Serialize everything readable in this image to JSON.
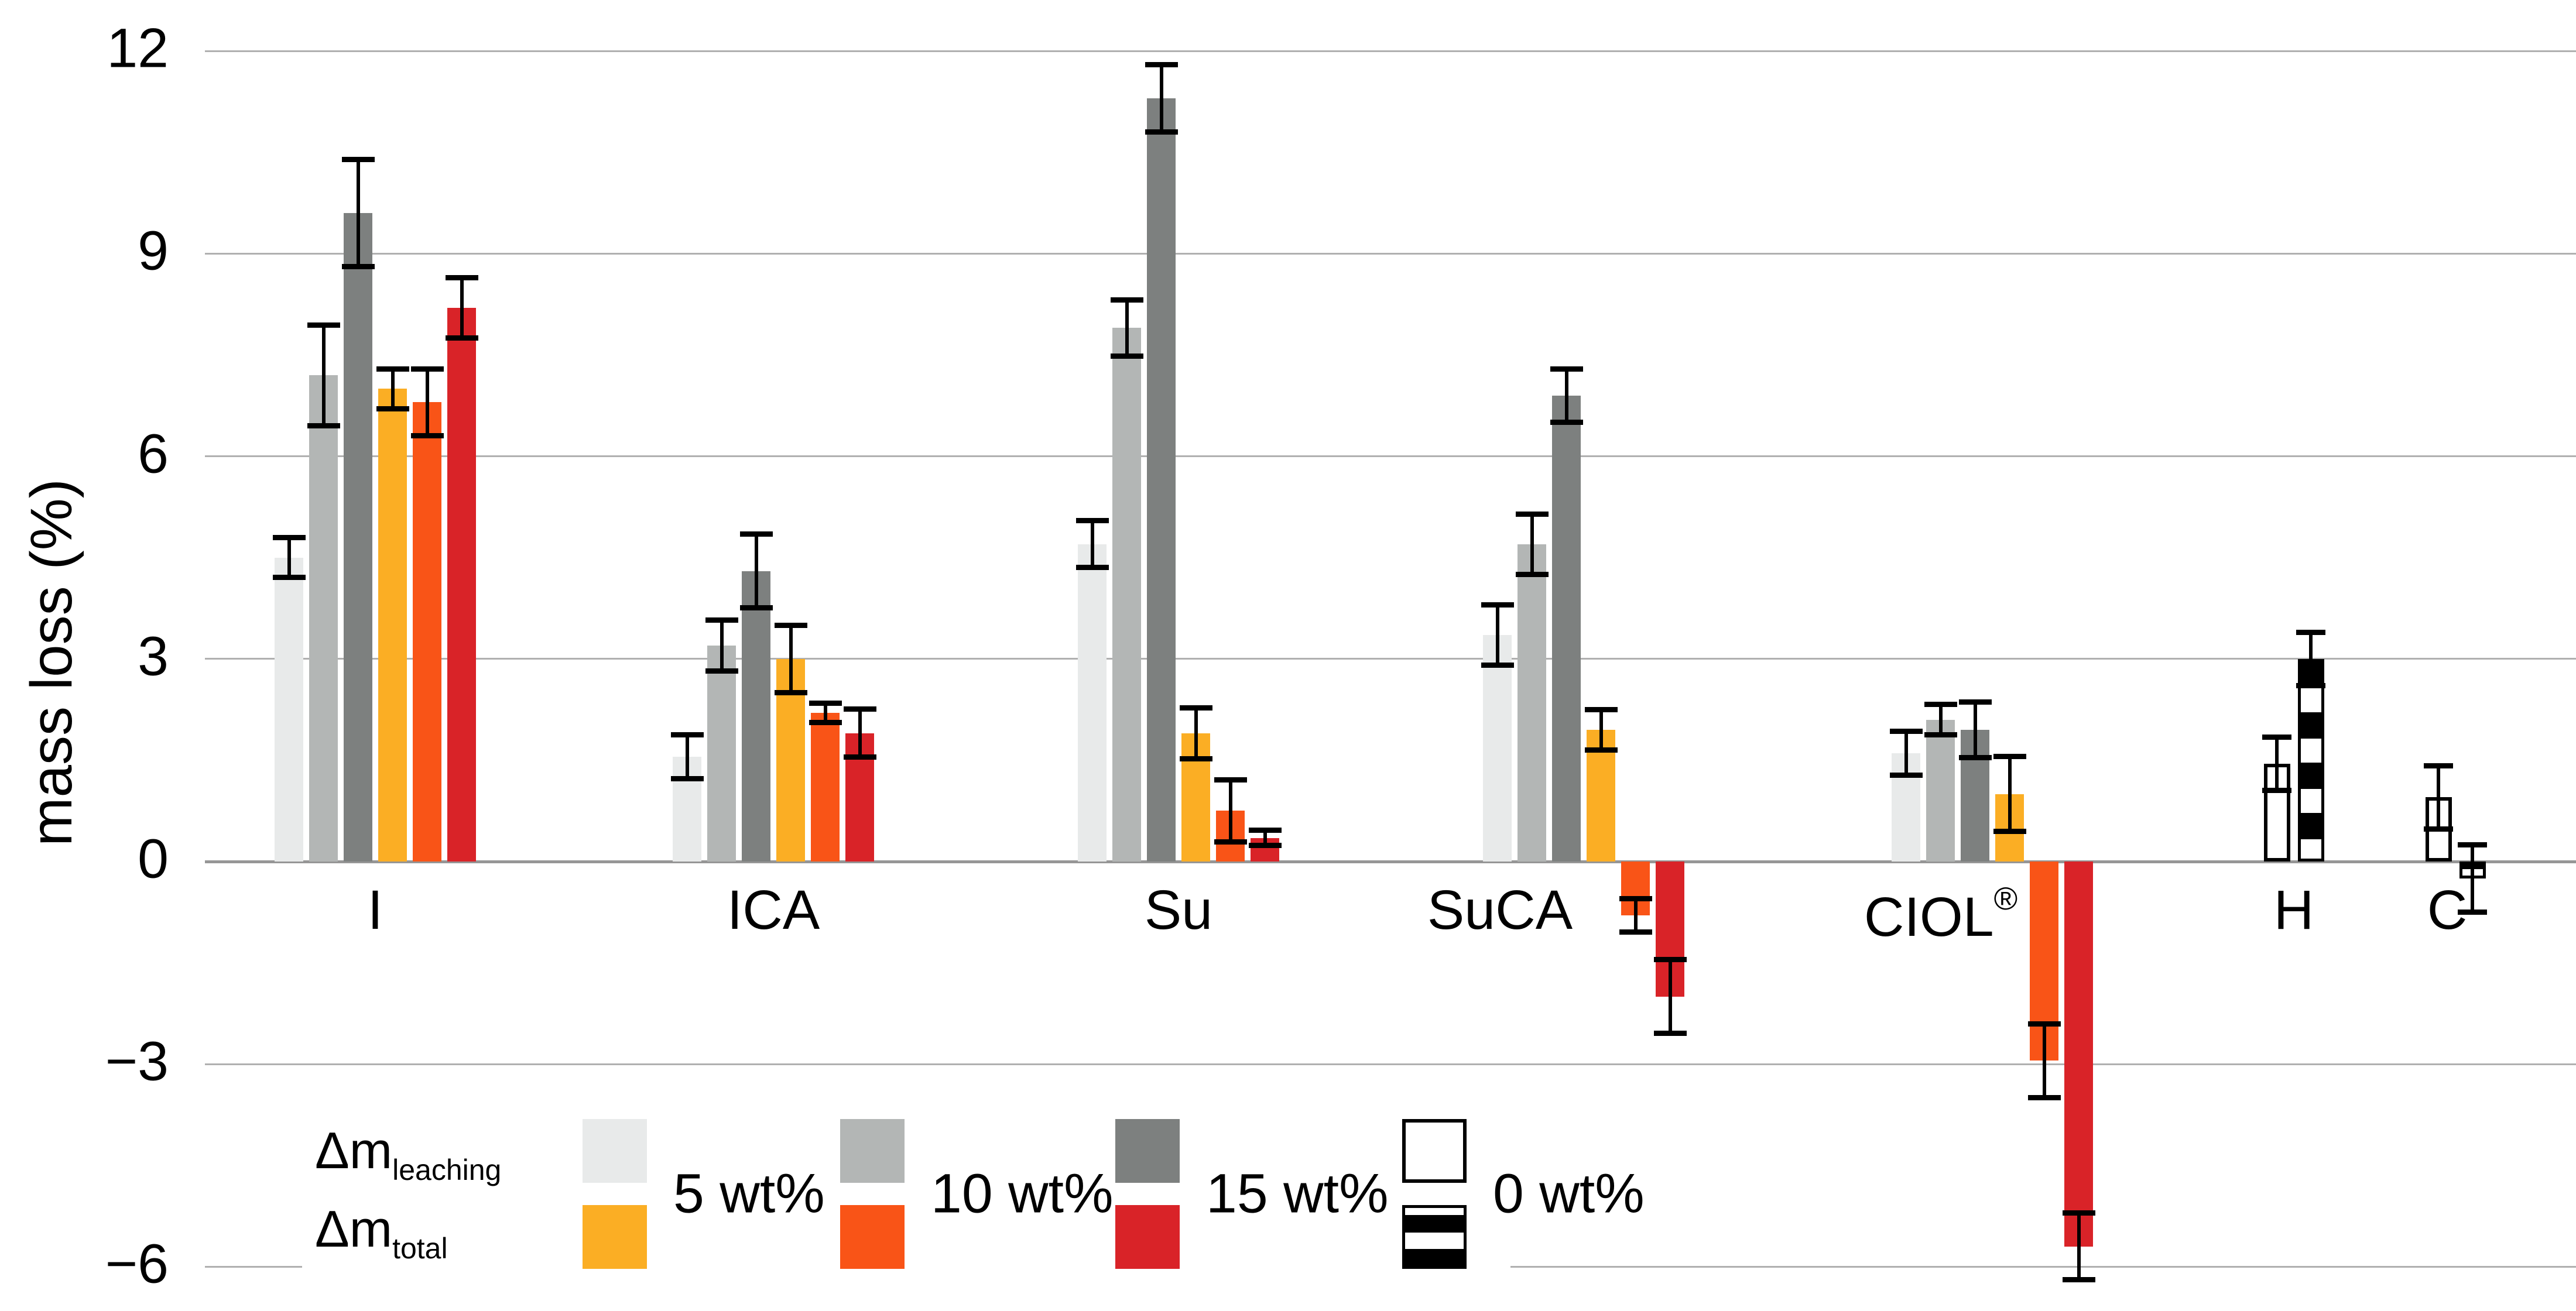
{
  "chart_data": {
    "type": "bar",
    "title": "",
    "ylabel": "mass loss (%)",
    "xlabel": "",
    "yticks": [
      12,
      9,
      6,
      3,
      0,
      -3,
      -6
    ],
    "ylim": [
      -6.6,
      12.3
    ],
    "grid": true,
    "legend_position": "bottom-left",
    "categories": [
      {
        "label": "I"
      },
      {
        "label": "ICA"
      },
      {
        "label": "Su"
      },
      {
        "label": "SuCA"
      },
      {
        "label": "CIOL",
        "sup": "®"
      },
      {
        "label": "H"
      },
      {
        "label": "C"
      }
    ],
    "series": [
      {
        "name": "Δm leaching 5 wt%",
        "style": "solid",
        "color": "#e8eaea",
        "values": [
          4.5,
          1.55,
          4.7,
          3.35,
          1.6,
          null,
          null
        ],
        "errors": [
          0.3,
          0.33,
          0.35,
          0.45,
          0.33,
          null,
          null
        ]
      },
      {
        "name": "Δm leaching 10 wt%",
        "style": "solid",
        "color": "#b3b6b5",
        "values": [
          7.2,
          3.2,
          7.9,
          4.7,
          2.1,
          null,
          null
        ],
        "errors": [
          0.75,
          0.38,
          0.42,
          0.45,
          0.23,
          null,
          null
        ]
      },
      {
        "name": "Δm leaching 15 wt%",
        "style": "solid",
        "color": "#7d807f",
        "values": [
          9.6,
          4.3,
          11.3,
          6.9,
          1.95,
          null,
          null
        ],
        "errors": [
          0.8,
          0.55,
          0.5,
          0.4,
          0.42,
          null,
          null
        ]
      },
      {
        "name": "Δm total 5 wt%",
        "style": "solid",
        "color": "#fbae24",
        "values": [
          7.0,
          3.0,
          1.9,
          1.95,
          1.0,
          null,
          null
        ],
        "errors": [
          0.3,
          0.5,
          0.38,
          0.3,
          0.56,
          null,
          null
        ]
      },
      {
        "name": "Δm total 10 wt%",
        "style": "solid",
        "color": "#f95417",
        "values": [
          6.8,
          2.2,
          0.75,
          -0.8,
          -2.95,
          null,
          null
        ],
        "errors": [
          0.5,
          0.15,
          0.46,
          0.25,
          0.55,
          null,
          null
        ]
      },
      {
        "name": "Δm total 15 wt%",
        "style": "solid",
        "color": "#d92328",
        "values": [
          8.2,
          1.9,
          0.35,
          -2.0,
          -5.7,
          null,
          null
        ],
        "errors": [
          0.45,
          0.36,
          0.12,
          0.55,
          0.5,
          null,
          null
        ]
      },
      {
        "name": "Δm leaching 0 wt%",
        "style": "outline",
        "values": [
          null,
          null,
          null,
          null,
          null,
          1.45,
          0.95
        ],
        "errors": [
          null,
          null,
          null,
          null,
          null,
          0.4,
          0.47
        ]
      },
      {
        "name": "Δm total 0 wt%",
        "style": "stripes",
        "values": [
          null,
          null,
          null,
          null,
          null,
          3.0,
          -0.25
        ],
        "errors": [
          null,
          null,
          null,
          null,
          null,
          0.4,
          0.5
        ]
      }
    ],
    "legend": {
      "row_labels": [
        {
          "main": "Δm",
          "sub": "leaching"
        },
        {
          "main": "Δm",
          "sub": "total"
        }
      ],
      "columns": [
        {
          "label": "5 wt%",
          "top_series": 0,
          "bottom_series": 3
        },
        {
          "label": "10 wt%",
          "top_series": 1,
          "bottom_series": 4
        },
        {
          "label": "15 wt%",
          "top_series": 2,
          "bottom_series": 5
        },
        {
          "label": "0 wt%",
          "top_series": 6,
          "bottom_series": 7
        }
      ]
    }
  }
}
